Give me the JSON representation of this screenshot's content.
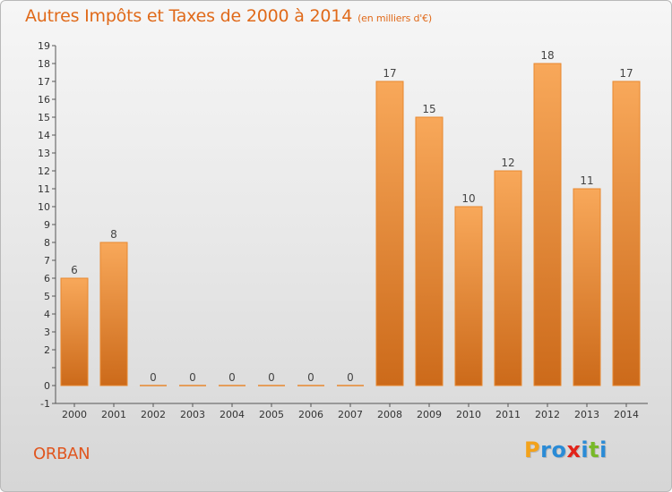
{
  "title": "Autres Impôts et Taxes de 2000 à 2014",
  "subtitle": "(en milliers d'€)",
  "commune": "ORBAN",
  "logo": {
    "letters": [
      "P",
      "r",
      "o",
      "x",
      "i",
      "t",
      "i"
    ],
    "colors": [
      "#f3a21a",
      "#2a8bd6",
      "#2a8bd6",
      "#e2231a",
      "#2a8bd6",
      "#78b928",
      "#2a8bd6"
    ]
  },
  "colors": {
    "bar_top": "#f8a85a",
    "bar_bottom": "#cc6a1a",
    "bar_stroke": "#e8882f",
    "accent": "#e06a1a"
  },
  "chart_data": {
    "type": "bar",
    "categories": [
      "2000",
      "2001",
      "2002",
      "2003",
      "2004",
      "2005",
      "2006",
      "2007",
      "2008",
      "2009",
      "2010",
      "2011",
      "2012",
      "2013",
      "2014"
    ],
    "values": [
      6,
      8,
      0,
      0,
      0,
      0,
      0,
      0,
      17,
      15,
      10,
      12,
      18,
      11,
      17
    ],
    "ylim": [
      -1,
      19
    ],
    "yticks": [
      "-1",
      "0",
      "",
      "2",
      "3",
      "4",
      "5",
      "6",
      "7",
      "8",
      "9",
      "10",
      "11",
      "12",
      "13",
      "14",
      "15",
      "16",
      "17",
      "18",
      "19"
    ],
    "ytick_values": [
      -1,
      0,
      1,
      2,
      3,
      4,
      5,
      6,
      7,
      8,
      9,
      10,
      11,
      12,
      13,
      14,
      15,
      16,
      17,
      18,
      19
    ],
    "grid": false,
    "legend": "none"
  }
}
